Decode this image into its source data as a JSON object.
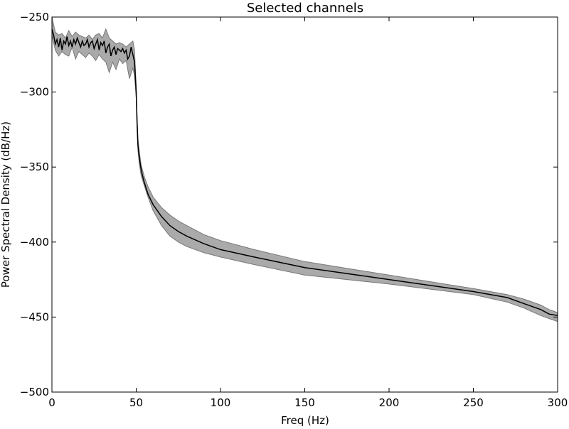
{
  "chart_data": {
    "type": "line",
    "title": "Selected channels",
    "xlabel": "Freq (Hz)",
    "ylabel": "Power Spectral Density (dB/Hz)",
    "xlim": [
      0,
      300
    ],
    "ylim": [
      -500,
      -250
    ],
    "xticks": [
      0,
      50,
      100,
      150,
      200,
      250,
      300
    ],
    "yticks": [
      -250,
      -300,
      -350,
      -400,
      -450,
      -500
    ],
    "xtick_labels": [
      "0",
      "50",
      "100",
      "150",
      "200",
      "250",
      "300"
    ],
    "ytick_labels": [
      "−250",
      "−300",
      "−350",
      "−400",
      "−450",
      "−500"
    ],
    "grid": false,
    "colors": {
      "mean_line": "#000000",
      "band_fill": "#aaaaaa",
      "band_edge": "#777777"
    },
    "series": [
      {
        "kind": "mean",
        "x": [
          0,
          1,
          2,
          3,
          4,
          5,
          6,
          7,
          8,
          9,
          10,
          11,
          12,
          13,
          14,
          15,
          16,
          17,
          18,
          19,
          20,
          21,
          22,
          23,
          24,
          25,
          26,
          27,
          28,
          29,
          30,
          31,
          32,
          33,
          34,
          35,
          36,
          37,
          38,
          39,
          40,
          41,
          42,
          43,
          44,
          45,
          46,
          47,
          48,
          49,
          50,
          50.5,
          51,
          52,
          53,
          54,
          55,
          57,
          60,
          65,
          70,
          75,
          80,
          90,
          100,
          120,
          150,
          200,
          250,
          270,
          280,
          290,
          295,
          300
        ],
        "y": [
          -258,
          -262,
          -268,
          -265,
          -270,
          -264,
          -272,
          -266,
          -268,
          -263,
          -269,
          -266,
          -270,
          -265,
          -268,
          -264,
          -267,
          -270,
          -266,
          -269,
          -268,
          -265,
          -270,
          -267,
          -266,
          -271,
          -268,
          -265,
          -272,
          -267,
          -269,
          -266,
          -274,
          -270,
          -268,
          -276,
          -272,
          -270,
          -275,
          -271,
          -272,
          -273,
          -271,
          -274,
          -272,
          -278,
          -276,
          -270,
          -275,
          -280,
          -300,
          -320,
          -335,
          -345,
          -352,
          -357,
          -361,
          -368,
          -375,
          -383,
          -389,
          -393,
          -396,
          -401,
          -405,
          -410,
          -417,
          -425,
          -433,
          -437,
          -441,
          -445,
          -448,
          -449
        ]
      },
      {
        "kind": "band_upper",
        "x": [
          0,
          2,
          4,
          6,
          8,
          10,
          12,
          14,
          16,
          18,
          20,
          22,
          24,
          26,
          28,
          30,
          32,
          34,
          36,
          38,
          40,
          42,
          44,
          46,
          48,
          49,
          50,
          50.5,
          51,
          52,
          53,
          55,
          57,
          60,
          65,
          70,
          75,
          80,
          90,
          100,
          120,
          150,
          200,
          250,
          270,
          280,
          290,
          295,
          300
        ],
        "y": [
          -250,
          -260,
          -262,
          -261,
          -264,
          -259,
          -263,
          -260,
          -262,
          -263,
          -264,
          -262,
          -265,
          -262,
          -261,
          -264,
          -258,
          -264,
          -266,
          -268,
          -267,
          -268,
          -270,
          -268,
          -266,
          -272,
          -296,
          -316,
          -331,
          -341,
          -349,
          -357,
          -363,
          -370,
          -377,
          -382,
          -386,
          -389,
          -395,
          -399,
          -405,
          -413,
          -422,
          -431,
          -435,
          -438,
          -442,
          -445,
          -447
        ]
      },
      {
        "kind": "band_lower",
        "x": [
          0,
          2,
          4,
          6,
          8,
          10,
          12,
          14,
          16,
          18,
          20,
          22,
          24,
          26,
          28,
          30,
          32,
          34,
          36,
          38,
          40,
          42,
          44,
          46,
          48,
          49,
          50,
          50.5,
          51,
          52,
          53,
          55,
          57,
          60,
          65,
          70,
          75,
          80,
          90,
          100,
          120,
          150,
          200,
          250,
          270,
          280,
          290,
          295,
          300
        ],
        "y": [
          -262,
          -272,
          -276,
          -273,
          -275,
          -276,
          -270,
          -278,
          -273,
          -275,
          -277,
          -274,
          -276,
          -279,
          -275,
          -278,
          -280,
          -287,
          -280,
          -285,
          -278,
          -281,
          -279,
          -291,
          -284,
          -289,
          -304,
          -324,
          -339,
          -349,
          -356,
          -363,
          -370,
          -379,
          -389,
          -396,
          -400,
          -403,
          -407,
          -410,
          -415,
          -422,
          -428,
          -435,
          -440,
          -444,
          -449,
          -451,
          -453
        ]
      }
    ]
  }
}
